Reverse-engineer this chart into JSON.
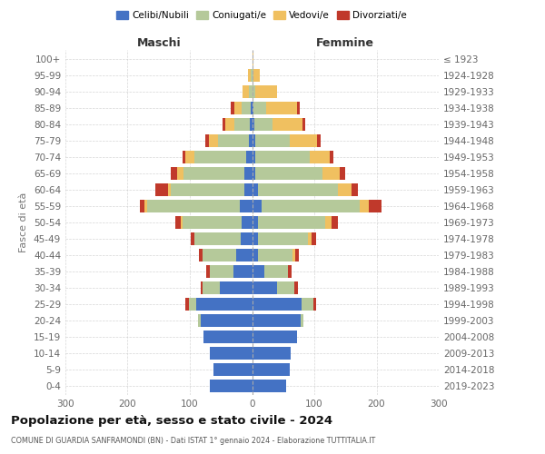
{
  "age_groups": [
    "0-4",
    "5-9",
    "10-14",
    "15-19",
    "20-24",
    "25-29",
    "30-34",
    "35-39",
    "40-44",
    "45-49",
    "50-54",
    "55-59",
    "60-64",
    "65-69",
    "70-74",
    "75-79",
    "80-84",
    "85-89",
    "90-94",
    "95-99",
    "100+"
  ],
  "birth_years": [
    "2019-2023",
    "2014-2018",
    "2009-2013",
    "2004-2008",
    "1999-2003",
    "1994-1998",
    "1989-1993",
    "1984-1988",
    "1979-1983",
    "1974-1978",
    "1969-1973",
    "1964-1968",
    "1959-1963",
    "1954-1958",
    "1949-1953",
    "1944-1948",
    "1939-1943",
    "1934-1938",
    "1929-1933",
    "1924-1928",
    "≤ 1923"
  ],
  "colors": {
    "celibi": "#4472c4",
    "coniugati": "#b5c99a",
    "vedovi": "#f0c060",
    "divorziati": "#c0392b"
  },
  "legend_labels": [
    "Celibi/Nubili",
    "Coniugati/e",
    "Vedovi/e",
    "Divorziati/e"
  ],
  "legend_colors": [
    "#4472c4",
    "#b5c99a",
    "#f0c060",
    "#c0392b"
  ],
  "maschi": {
    "celibi": [
      68,
      62,
      68,
      78,
      82,
      90,
      52,
      30,
      25,
      18,
      17,
      20,
      12,
      12,
      10,
      5,
      3,
      2,
      0,
      0,
      0
    ],
    "coniugati": [
      0,
      0,
      0,
      0,
      5,
      12,
      28,
      38,
      55,
      75,
      95,
      148,
      118,
      98,
      82,
      50,
      25,
      15,
      5,
      2,
      0
    ],
    "vedovi": [
      0,
      0,
      0,
      0,
      0,
      0,
      0,
      0,
      0,
      0,
      3,
      5,
      5,
      10,
      15,
      15,
      15,
      12,
      10,
      5,
      0
    ],
    "divorziati": [
      0,
      0,
      0,
      0,
      0,
      5,
      3,
      5,
      5,
      5,
      8,
      8,
      20,
      10,
      5,
      5,
      5,
      5,
      0,
      0,
      0
    ]
  },
  "femmine": {
    "nubili": [
      55,
      60,
      62,
      72,
      78,
      80,
      40,
      20,
      10,
      10,
      10,
      15,
      10,
      5,
      5,
      5,
      3,
      2,
      0,
      0,
      0
    ],
    "coniugati": [
      0,
      0,
      0,
      0,
      5,
      18,
      28,
      38,
      55,
      80,
      108,
      158,
      128,
      108,
      88,
      55,
      30,
      20,
      5,
      2,
      0
    ],
    "vedovi": [
      0,
      0,
      0,
      0,
      0,
      0,
      0,
      0,
      5,
      5,
      10,
      15,
      22,
      28,
      32,
      45,
      48,
      50,
      35,
      10,
      2
    ],
    "divorziati": [
      0,
      0,
      0,
      0,
      0,
      5,
      5,
      5,
      5,
      8,
      10,
      20,
      10,
      8,
      5,
      5,
      5,
      5,
      0,
      0,
      0
    ]
  },
  "xlim": 300,
  "title": "Popolazione per età, sesso e stato civile - 2024",
  "subtitle": "COMUNE DI GUARDIA SANFRAMONDI (BN) - Dati ISTAT 1° gennaio 2024 - Elaborazione TUTTITALIA.IT",
  "xlabel_left": "Maschi",
  "xlabel_right": "Femmine",
  "ylabel_left": "Fasce di età",
  "bg_color": "#ffffff",
  "grid_color": "#cccccc",
  "bar_height": 0.75
}
